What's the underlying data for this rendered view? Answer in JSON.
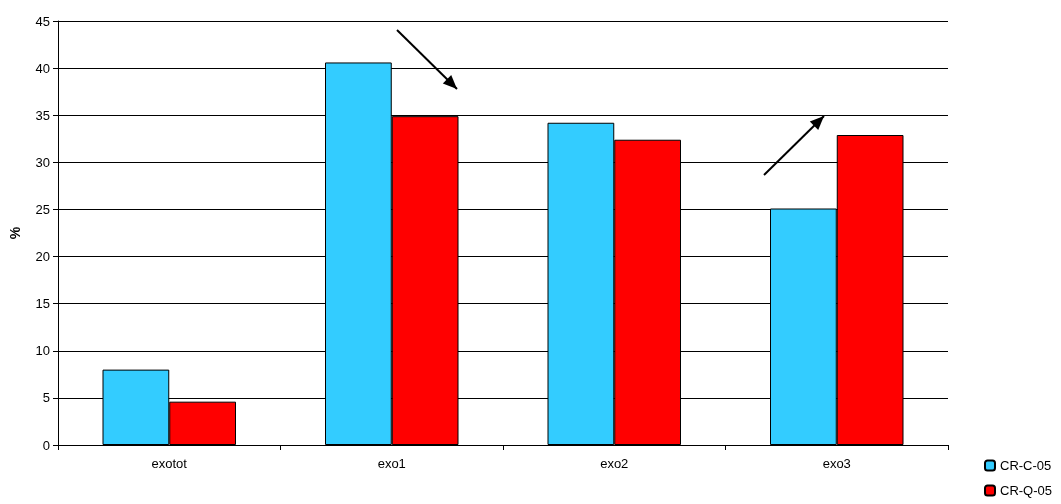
{
  "chart_data": {
    "type": "bar",
    "ylabel": "%",
    "categories": [
      "exotot",
      "exo1",
      "exo2",
      "exo3"
    ],
    "series": [
      {
        "name": "CR-C-05",
        "color": "#33ccff",
        "values": [
          8,
          40.6,
          34.2,
          25.1
        ]
      },
      {
        "name": "CR-Q-05",
        "color": "#ff0000",
        "values": [
          4.6,
          34.9,
          32.4,
          32.9
        ]
      }
    ],
    "ylim": [
      0,
      45
    ],
    "yticks": [
      0,
      5,
      10,
      15,
      20,
      25,
      30,
      35,
      40,
      45
    ],
    "grid": "y",
    "legend": "bottom right"
  }
}
